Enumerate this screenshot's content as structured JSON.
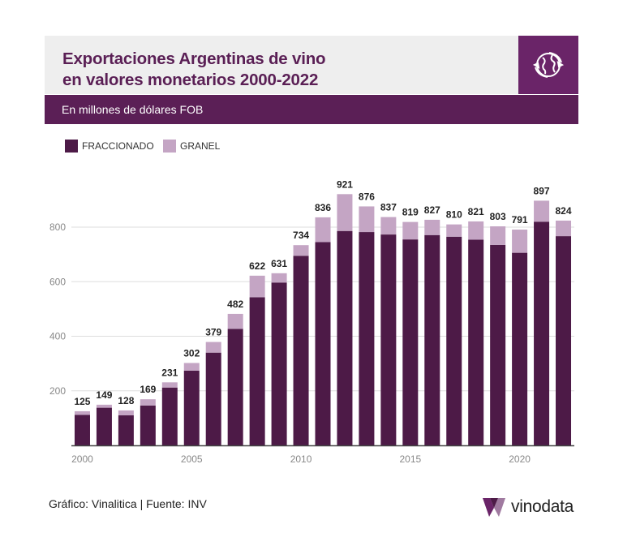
{
  "header": {
    "title_line1": "Exportaciones Argentinas de vino",
    "title_line2": "en valores monetarios 2000-2022",
    "subtitle": "En millones de dólares FOB",
    "logo_icon": "wine-globe-icon"
  },
  "legend": {
    "items": [
      {
        "label": "FRACCIONADO",
        "color": "#4d1a47"
      },
      {
        "label": "GRANEL",
        "color": "#c4a5c4"
      }
    ]
  },
  "footer": {
    "source": "Gráfico: Vinalitica | Fuente: INV",
    "brand": "vinodata",
    "brand_icon": "vinodata-v-icon"
  },
  "chart_data": {
    "type": "bar",
    "stacked": true,
    "x": [
      2000,
      2001,
      2002,
      2003,
      2004,
      2005,
      2006,
      2007,
      2008,
      2009,
      2010,
      2011,
      2012,
      2013,
      2014,
      2015,
      2016,
      2017,
      2018,
      2019,
      2020,
      2021,
      2022
    ],
    "x_tick_labels": [
      "2000",
      "2005",
      "2010",
      "2015",
      "2020"
    ],
    "series": [
      {
        "name": "FRACCIONADO",
        "color": "#4d1a47",
        "values": [
          112,
          138,
          110,
          146,
          212,
          274,
          340,
          427,
          543,
          597,
          695,
          745,
          786,
          782,
          773,
          755,
          771,
          765,
          754,
          735,
          706,
          820,
          767
        ]
      },
      {
        "name": "GRANEL",
        "color": "#c4a5c4",
        "values": [
          13,
          11,
          18,
          23,
          19,
          28,
          39,
          55,
          79,
          34,
          39,
          91,
          135,
          94,
          64,
          64,
          56,
          45,
          67,
          68,
          85,
          77,
          57
        ]
      }
    ],
    "totals": [
      125,
      149,
      128,
      169,
      231,
      302,
      379,
      482,
      622,
      631,
      734,
      836,
      921,
      876,
      837,
      819,
      827,
      810,
      821,
      803,
      791,
      897,
      824
    ],
    "y_ticks": [
      200,
      400,
      600,
      800
    ],
    "ylim": [
      0,
      1000
    ],
    "grid": true,
    "legend_position": "top-left"
  }
}
